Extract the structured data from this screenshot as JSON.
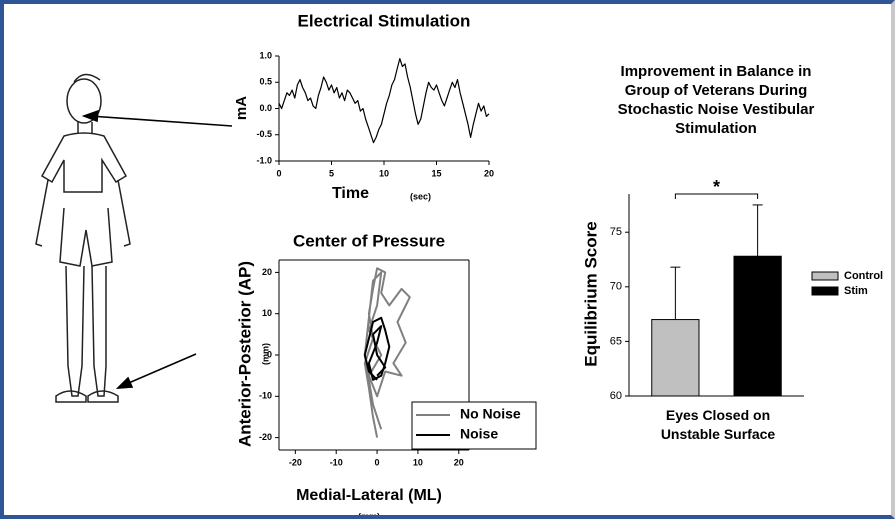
{
  "chart_data": [
    {
      "type": "line",
      "title": "Electrical Stimulation",
      "x_label": "Time",
      "x_unit": "(sec)",
      "y_label": "mA",
      "color": "#000000",
      "x": [
        0,
        0.25,
        0.5,
        0.75,
        1,
        1.25,
        1.5,
        1.75,
        2,
        2.25,
        2.5,
        2.75,
        3,
        3.25,
        3.5,
        3.75,
        4,
        4.25,
        4.5,
        4.75,
        5,
        5.25,
        5.5,
        5.75,
        6,
        6.25,
        6.5,
        6.75,
        7,
        7.25,
        7.5,
        7.75,
        8,
        8.25,
        8.5,
        8.75,
        9,
        9.25,
        9.5,
        9.75,
        10,
        10.25,
        10.5,
        10.75,
        11,
        11.25,
        11.5,
        11.75,
        12,
        12.25,
        12.5,
        12.75,
        13,
        13.25,
        13.5,
        13.75,
        14,
        14.25,
        14.5,
        14.75,
        15,
        15.25,
        15.5,
        15.75,
        16,
        16.25,
        16.5,
        16.75,
        17,
        17.25,
        17.5,
        17.75,
        18,
        18.25,
        18.5,
        18.75,
        19,
        19.25,
        19.5,
        19.75,
        20
      ],
      "values": [
        0.1,
        0.0,
        0.15,
        0.3,
        0.25,
        0.35,
        0.2,
        0.45,
        0.55,
        0.4,
        0.3,
        0.15,
        0.2,
        0.05,
        0.0,
        0.25,
        0.4,
        0.6,
        0.5,
        0.35,
        0.45,
        0.3,
        0.4,
        0.2,
        0.3,
        0.15,
        0.35,
        0.3,
        0.2,
        0.1,
        0.15,
        -0.05,
        0.0,
        -0.2,
        -0.35,
        -0.5,
        -0.65,
        -0.55,
        -0.4,
        -0.3,
        -0.1,
        0.1,
        0.25,
        0.45,
        0.55,
        0.75,
        0.95,
        0.8,
        0.85,
        0.6,
        0.4,
        0.15,
        -0.1,
        -0.3,
        -0.2,
        0.05,
        0.3,
        0.5,
        0.4,
        0.35,
        0.45,
        0.3,
        0.15,
        0.05,
        0.2,
        0.35,
        0.5,
        0.4,
        0.55,
        0.3,
        0.1,
        -0.1,
        -0.3,
        -0.55,
        -0.3,
        -0.1,
        0.1,
        -0.05,
        0.05,
        -0.15,
        -0.1
      ],
      "xlim": [
        0,
        20
      ],
      "xticks": [
        0,
        5,
        10,
        15,
        20
      ],
      "ylim": [
        -1,
        1
      ],
      "yticks": [
        {
          "value": -1,
          "label": "-1.0"
        },
        {
          "value": -0.5,
          "label": "-0.5"
        },
        {
          "value": 0,
          "label": "0.0"
        },
        {
          "value": 0.5,
          "label": "0.5"
        },
        {
          "value": 1,
          "label": "1.0"
        }
      ]
    },
    {
      "type": "line",
      "title": "Center of Pressure",
      "x_label": "Medial-Lateral (ML)",
      "x_unit": "(mm)",
      "y_label": "Anterior-Posterior (AP)",
      "y_unit": "(mm)",
      "box": true,
      "legend": "lower right",
      "series": [
        {
          "name": "No Noise",
          "color": "#808080",
          "x": [
            0,
            -1,
            -2,
            -3,
            -1,
            -2,
            -1,
            0,
            2,
            1,
            3,
            6,
            8,
            5,
            7,
            4,
            6,
            2,
            0,
            -2,
            1,
            -2,
            0,
            1,
            -1,
            -3,
            -1,
            1
          ],
          "values": [
            -20,
            -15,
            -8,
            -2,
            4,
            10,
            16,
            21,
            20,
            15,
            12,
            16,
            14,
            8,
            3,
            -2,
            -5,
            -4,
            -10,
            -5,
            0,
            6,
            12,
            20,
            18,
            0,
            -12,
            -18
          ]
        },
        {
          "name": "Noise",
          "color": "#000000",
          "x": [
            0,
            -2,
            -3,
            -2,
            -1,
            1,
            2,
            3,
            2,
            1,
            -1,
            -2,
            0,
            1,
            -1,
            0,
            2,
            0
          ],
          "values": [
            -6,
            -4,
            0,
            4,
            8,
            9,
            6,
            2,
            -2,
            -5,
            -6,
            -2,
            3,
            7,
            5,
            0,
            -3,
            -5
          ]
        }
      ],
      "xlim": [
        -24,
        22.5
      ],
      "xticks": [
        -20,
        -10,
        0,
        10,
        20
      ],
      "ylim": [
        -23,
        23
      ],
      "yticks": [
        -20,
        -10,
        0,
        10,
        20
      ]
    },
    {
      "type": "bar",
      "title": "Improvement in Balance in Group of Veterans During Stochastic Noise Vestibular Stimulation",
      "y_label": "Equilibrium Score",
      "annotation": "*",
      "legend": "right",
      "categories": [
        "Eyes Closed on Unstable Surface"
      ],
      "series": [
        {
          "name": "Control",
          "color": "#c0c0c0",
          "values": [
            67
          ],
          "errors": [
            4.8
          ]
        },
        {
          "name": "Stim",
          "color": "#000000",
          "values": [
            72.8
          ],
          "errors": [
            4.7
          ]
        }
      ],
      "ylim": [
        60,
        78.5
      ],
      "yticks": [
        60,
        65,
        70,
        75
      ]
    }
  ]
}
